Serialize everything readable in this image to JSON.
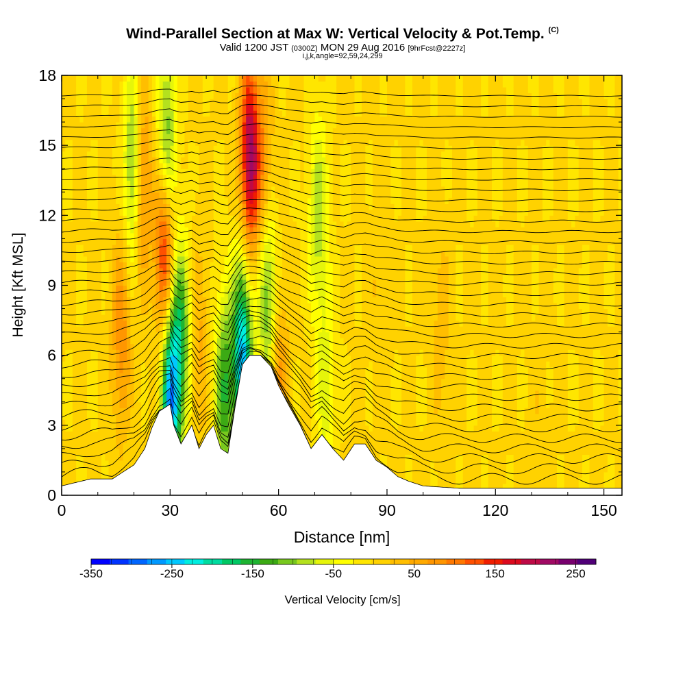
{
  "chart_data": {
    "type": "heatmap",
    "title": "Wind-Parallel Section at Max W: Vertical Velocity & Pot.Temp.",
    "title_mark": "(C)",
    "subtitle_main": "Valid 1200 JST",
    "subtitle_utc": "(0300Z)",
    "subtitle_date": "MON 29 Aug 2016",
    "subtitle_fcst": "[9hrFcst@2227z]",
    "subtitle2": "i,j,k,angle=92,59,24,299",
    "xlabel": "Distance [nm]",
    "ylabel": "Height [Kft MSL]",
    "xlim": [
      0,
      155
    ],
    "ylim": [
      0,
      18
    ],
    "xticks": [
      "0",
      "30",
      "60",
      "90",
      "120",
      "150"
    ],
    "yticks": [
      "0",
      "3",
      "6",
      "9",
      "12",
      "15",
      "18"
    ],
    "colorbar": {
      "label": "Vertical Velocity [cm/s]",
      "range": [
        -350,
        275
      ],
      "tick_labels": [
        "-350",
        "-250",
        "-150",
        "-50",
        "50",
        "150",
        "250"
      ],
      "colors": [
        "#0000ff",
        "#0033ff",
        "#0066ff",
        "#0099ff",
        "#00c8ff",
        "#00eee0",
        "#00dca0",
        "#00c864",
        "#1eb432",
        "#3caa14",
        "#78c81e",
        "#b4e11e",
        "#e6f50a",
        "#ffff00",
        "#ffe600",
        "#ffd200",
        "#ffbe00",
        "#ffaa00",
        "#ff9600",
        "#ff7800",
        "#ff5000",
        "#f01e00",
        "#dc0a1e",
        "#be0a46",
        "#a00a64",
        "#78006e",
        "#500078"
      ]
    },
    "terrain_heights_kft": [
      [
        0,
        0.4
      ],
      [
        8,
        0.7
      ],
      [
        14,
        0.7
      ],
      [
        17,
        1.0
      ],
      [
        20,
        1.3
      ],
      [
        23,
        2.0
      ],
      [
        25,
        2.9
      ],
      [
        27,
        3.6
      ],
      [
        30,
        3.9
      ],
      [
        31,
        3.0
      ],
      [
        33,
        2.2
      ],
      [
        36,
        3.0
      ],
      [
        38,
        2.0
      ],
      [
        40,
        2.6
      ],
      [
        42,
        3.0
      ],
      [
        44,
        2.0
      ],
      [
        46,
        1.8
      ],
      [
        48,
        3.8
      ],
      [
        50,
        5.6
      ],
      [
        52,
        6.0
      ],
      [
        55,
        6.0
      ],
      [
        58,
        5.5
      ],
      [
        60,
        4.7
      ],
      [
        63,
        3.8
      ],
      [
        66,
        3.0
      ],
      [
        69,
        2.0
      ],
      [
        72,
        2.6
      ],
      [
        75,
        2.0
      ],
      [
        78,
        1.5
      ],
      [
        81,
        2.2
      ],
      [
        84,
        2.2
      ],
      [
        87,
        1.5
      ],
      [
        90,
        1.2
      ],
      [
        93,
        0.8
      ],
      [
        96,
        0.6
      ],
      [
        100,
        0.4
      ],
      [
        110,
        0.3
      ],
      [
        155,
        0.3
      ]
    ],
    "vertical_velocity_features": [
      {
        "x_nm": 16.5,
        "z_kft": 6.9,
        "w_cms": 85
      },
      {
        "x_nm": 20,
        "z_kft": 14,
        "w_cms": -150
      },
      {
        "x_nm": 22,
        "z_kft": 13.5,
        "w_cms": 130
      },
      {
        "x_nm": 28.5,
        "z_kft": 10.5,
        "w_cms": 185
      },
      {
        "x_nm": 29,
        "z_kft": 15,
        "w_cms": -140
      },
      {
        "x_nm": 30,
        "z_kft": 4.2,
        "w_cms": -260
      },
      {
        "x_nm": 33,
        "z_kft": 6.8,
        "w_cms": -140
      },
      {
        "x_nm": 38,
        "z_kft": 6.5,
        "w_cms": 50
      },
      {
        "x_nm": 45,
        "z_kft": 4.5,
        "w_cms": -140
      },
      {
        "x_nm": 52,
        "z_kft": 14.5,
        "w_cms": 215
      },
      {
        "x_nm": 50,
        "z_kft": 6,
        "w_cms": -250
      },
      {
        "x_nm": 56,
        "z_kft": 14,
        "w_cms": 75
      },
      {
        "x_nm": 57,
        "z_kft": 8.5,
        "w_cms": -130
      },
      {
        "x_nm": 60,
        "z_kft": 4.8,
        "w_cms": 80
      },
      {
        "x_nm": 71,
        "z_kft": 12,
        "w_cms": -90
      },
      {
        "x_nm": 73,
        "z_kft": 4.5,
        "w_cms": -60
      },
      {
        "x_nm": 105,
        "z_kft": 7,
        "w_cms": 35
      },
      {
        "x_nm": 88,
        "z_kft": 9,
        "w_cms": 20
      },
      {
        "x_nm": 132,
        "z_kft": 2.5,
        "w_cms": 15
      }
    ],
    "isentrope_contour_count": 38
  }
}
